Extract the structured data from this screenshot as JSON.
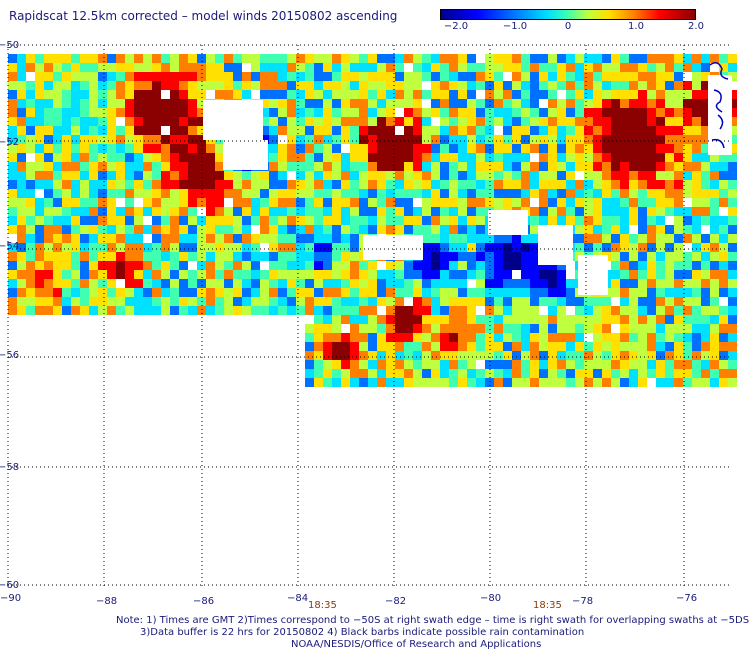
{
  "title": "Rapidscat 12.5km corrected – model winds 20150802 ascending",
  "colorbar": {
    "labels": [
      "−2.0",
      "−1.0",
      "0",
      "1.0",
      "2.0"
    ],
    "min": -2.0,
    "max": 2.0,
    "colors": [
      "#00008a",
      "#0000ff",
      "#0070ff",
      "#00e0ff",
      "#40ffb0",
      "#c0ff40",
      "#ffe000",
      "#ff8000",
      "#ff0000",
      "#8b0000"
    ]
  },
  "map": {
    "lon_labels": [
      "−90",
      "−88",
      "−86",
      "−84",
      "−82",
      "−80",
      "−78",
      "−76"
    ],
    "lat_labels": [
      "−50",
      "−52",
      "−54",
      "−56",
      "−58",
      "−60"
    ],
    "lon_range": [
      -90,
      -75.2
    ],
    "lat_range": [
      -60,
      -50
    ],
    "gridlines": "dotted",
    "coastline_color": "#0000c0"
  },
  "time_labels": [
    "18:35",
    "18:35"
  ],
  "notes": {
    "line1": "Note: 1) Times are GMT 2)Times correspond to −50S at right swath edge – time is right swath for overlapping swaths at −5DS",
    "line2": "3)Data buffer is 22 hrs for 20150802 4) Black barbs indicate possible rain contamination",
    "line3": "NOAA/NESDIS/Office of Research and Applications"
  }
}
